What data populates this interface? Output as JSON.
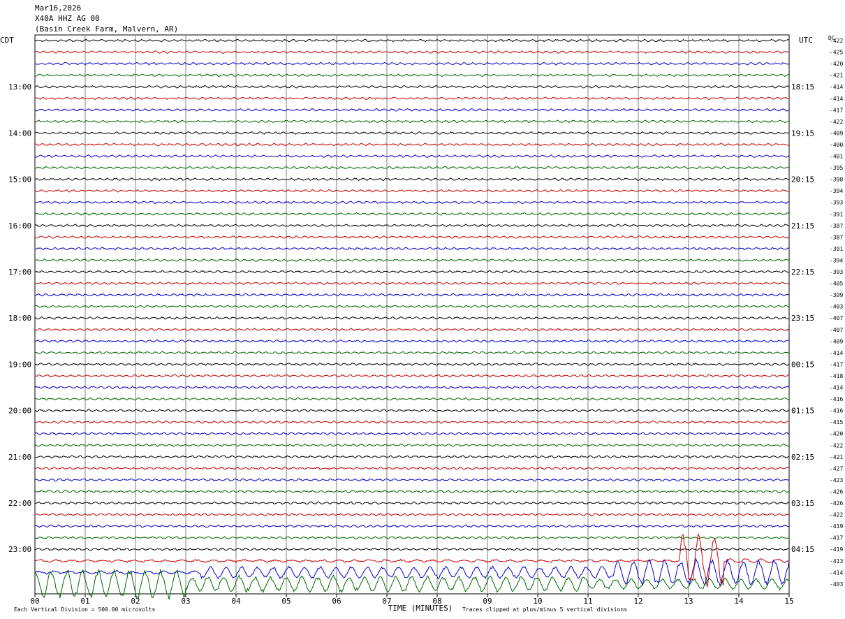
{
  "header": {
    "date": "Mar16,2026",
    "station": "X40A HHZ AG 00",
    "location": "(Basin Creek Farm, Malvern, AR)"
  },
  "chart_data": {
    "type": "line",
    "left_axis_label": "CDT",
    "right_axis_label": "UTC",
    "dc_label": "DC",
    "xlabel": "TIME (MINUTES)",
    "x_ticks": [
      "00",
      "01",
      "02",
      "03",
      "04",
      "05",
      "06",
      "07",
      "08",
      "09",
      "10",
      "11",
      "12",
      "13",
      "14",
      "15"
    ],
    "xlim": [
      0,
      15
    ],
    "cdt_hour_labels": [
      "13:00",
      "14:00",
      "15:00",
      "16:00",
      "17:00",
      "18:00",
      "19:00",
      "20:00",
      "21:00",
      "22:00",
      "23:00"
    ],
    "utc_hour_labels": [
      "18:15",
      "19:15",
      "20:15",
      "21:15",
      "22:15",
      "23:15",
      "00:15",
      "01:15",
      "02:15",
      "03:15",
      "04:15"
    ],
    "trace_colors": [
      "#000000",
      "#cc0000",
      "#0000cc",
      "#006600"
    ],
    "dc_offsets": [
      "-422",
      "-425",
      "-420",
      "-421",
      "-414",
      "-414",
      "-417",
      "-422",
      "-409",
      "-400",
      "-401",
      "-395",
      "-398",
      "-394",
      "-393",
      "-391",
      "-387",
      "-387",
      "-391",
      "-394",
      "-393",
      "-405",
      "-399",
      "-403",
      "-407",
      "-407",
      "-409",
      "-414",
      "-417",
      "-418",
      "-414",
      "-416",
      "-416",
      "-415",
      "-420",
      "-422",
      "-421",
      "-427",
      "-423",
      "-426",
      "-426",
      "-422",
      "-419",
      "-417",
      "-419",
      "-413",
      "-414",
      "-403"
    ],
    "footer_scale": "Each Vertical Division =  500.00 microvolts",
    "footer_clip": "Traces clipped at plus/minus 5 vertical divisions"
  }
}
